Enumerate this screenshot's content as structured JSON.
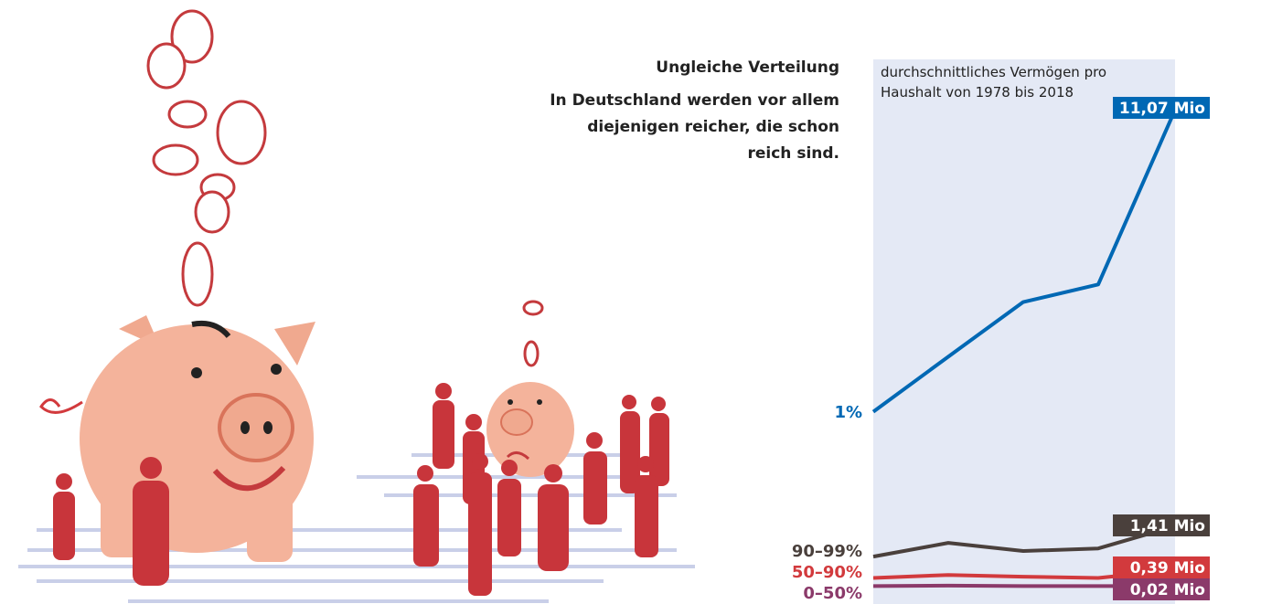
{
  "chart_data": {
    "type": "line",
    "title": "Ungleiche Verteilung",
    "subtitle": "In Deutschland werden vor allem  diejenigen reicher, die schon reich sind.",
    "note": "durchschnittliches Vermögen pro Haushalt von 1978 bis 2018",
    "ylim": [
      -0.4,
      12.35
    ],
    "background": "#e4e9f5",
    "series": [
      {
        "name": "1%",
        "color": "#0068b4",
        "values": [
          4.1,
          5.39,
          6.67,
          7.08,
          11.07
        ],
        "value_labels": [
          null,
          null,
          null,
          null,
          "11,07 Mio"
        ]
      },
      {
        "name": "90–99%",
        "color": "#4a403c",
        "values": [
          0.71,
          1.03,
          0.84,
          0.9,
          1.41
        ],
        "value_labels": [
          null,
          null,
          null,
          null,
          "1,41 Mio"
        ]
      },
      {
        "name": "50–90%",
        "color": "#d23a3d",
        "values": [
          0.21,
          0.28,
          0.24,
          0.21,
          0.39
        ],
        "value_labels": [
          null,
          null,
          null,
          null,
          "0,39 Mio"
        ]
      },
      {
        "name": "0–50%",
        "color": "#8b3a6a",
        "values": [
          0.02,
          0.03,
          0.02,
          0.02,
          0.02
        ],
        "value_labels": [
          null,
          null,
          null,
          null,
          "0,02 Mio"
        ]
      }
    ]
  }
}
